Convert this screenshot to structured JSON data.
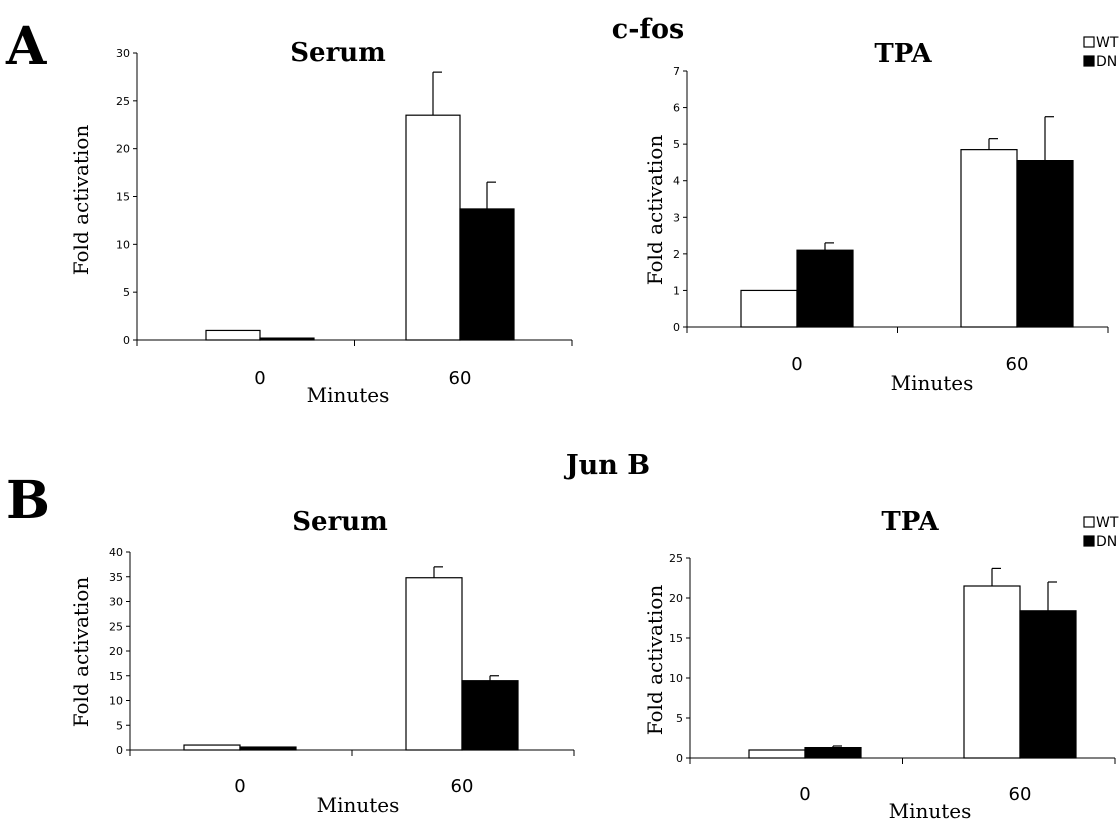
{
  "panels": [
    {
      "letter": "A",
      "gene": "c-fos"
    },
    {
      "letter": "B",
      "gene": "Jun B"
    }
  ],
  "legend": {
    "items": [
      {
        "label": "WT",
        "color": "#ffffff"
      },
      {
        "label": "DN",
        "color": "#000000"
      }
    ]
  },
  "colors": {
    "wt_fill": "#ffffff",
    "dn_fill": "#000000",
    "outline": "#000000"
  },
  "chart_data": [
    {
      "type": "bar",
      "panel": "A",
      "gene": "c-fos",
      "title": "Serum",
      "xlabel": "Minutes",
      "ylabel": "Fold activation",
      "categories": [
        "0",
        "60"
      ],
      "ylim": [
        0,
        30
      ],
      "yticks": [
        0,
        5,
        10,
        15,
        20,
        25,
        30
      ],
      "series": [
        {
          "name": "WT",
          "values": [
            1.0,
            23.5
          ],
          "errors": [
            0,
            4.5
          ]
        },
        {
          "name": "DN",
          "values": [
            0.2,
            13.7
          ],
          "errors": [
            0,
            2.8
          ]
        }
      ],
      "legend": "none"
    },
    {
      "type": "bar",
      "panel": "A",
      "gene": "c-fos",
      "title": "TPA",
      "xlabel": "Minutes",
      "ylabel": "Fold activation",
      "categories": [
        "0",
        "60"
      ],
      "ylim": [
        0,
        7
      ],
      "yticks": [
        0,
        1,
        2,
        3,
        4,
        5,
        6,
        7
      ],
      "series": [
        {
          "name": "WT",
          "values": [
            1.0,
            4.85
          ],
          "errors": [
            0,
            0.3
          ]
        },
        {
          "name": "DN",
          "values": [
            2.1,
            4.55
          ],
          "errors": [
            0.2,
            1.2
          ]
        }
      ],
      "legend": "top-right"
    },
    {
      "type": "bar",
      "panel": "B",
      "gene": "Jun B",
      "title": "Serum",
      "xlabel": "Minutes",
      "ylabel": "Fold activation",
      "categories": [
        "0",
        "60"
      ],
      "ylim": [
        0,
        40
      ],
      "yticks": [
        0,
        5,
        10,
        15,
        20,
        25,
        30,
        35,
        40
      ],
      "series": [
        {
          "name": "WT",
          "values": [
            1.0,
            34.8
          ],
          "errors": [
            0,
            2.2
          ]
        },
        {
          "name": "DN",
          "values": [
            0.6,
            14.0
          ],
          "errors": [
            0,
            1.0
          ]
        }
      ],
      "legend": "none"
    },
    {
      "type": "bar",
      "panel": "B",
      "gene": "Jun B",
      "title": "TPA",
      "xlabel": "Minutes",
      "ylabel": "Fold activation",
      "categories": [
        "0",
        "60"
      ],
      "ylim": [
        0,
        25
      ],
      "yticks": [
        0,
        5,
        10,
        15,
        20,
        25
      ],
      "series": [
        {
          "name": "WT",
          "values": [
            1.0,
            21.5
          ],
          "errors": [
            0,
            2.2
          ]
        },
        {
          "name": "DN",
          "values": [
            1.3,
            18.4
          ],
          "errors": [
            0.2,
            3.6
          ]
        }
      ],
      "legend": "top-right"
    }
  ]
}
